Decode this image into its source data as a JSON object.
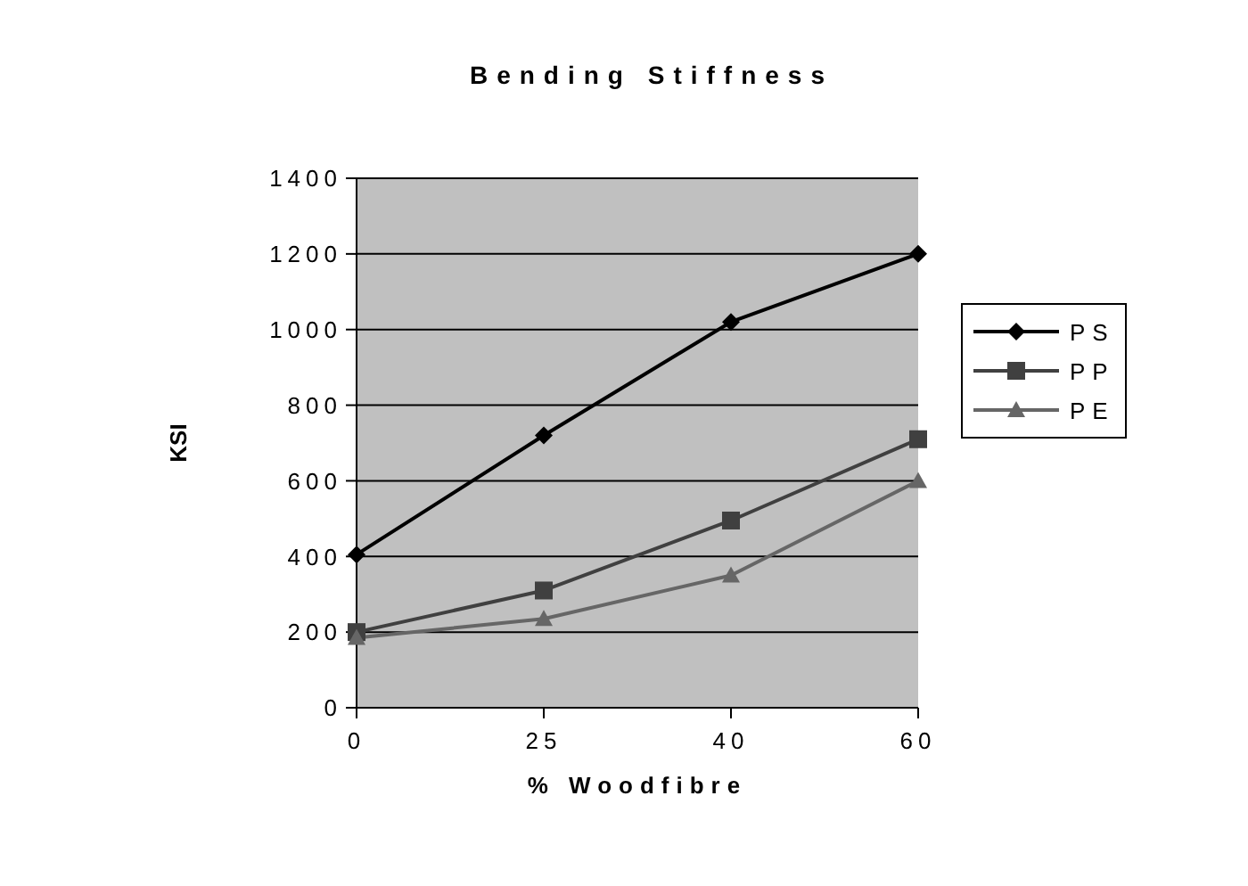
{
  "chart_data": {
    "type": "line",
    "title": "Bending Stiffness",
    "xlabel": "% Woodfibre",
    "ylabel": "KSI",
    "categories": [
      "0",
      "25",
      "40",
      "60"
    ],
    "series": [
      {
        "name": "PS",
        "color": "#000000",
        "marker": "diamond",
        "values": [
          405,
          720,
          1020,
          1200
        ]
      },
      {
        "name": "PP",
        "color": "#404040",
        "marker": "square",
        "values": [
          200,
          310,
          495,
          710
        ]
      },
      {
        "name": "PE",
        "color": "#666666",
        "marker": "triangle",
        "values": [
          185,
          235,
          350,
          600
        ]
      }
    ],
    "ylim": [
      0,
      1400
    ],
    "yticks": [
      0,
      200,
      400,
      600,
      800,
      1000,
      1200,
      1400
    ],
    "grid": "y",
    "legend": "right"
  }
}
